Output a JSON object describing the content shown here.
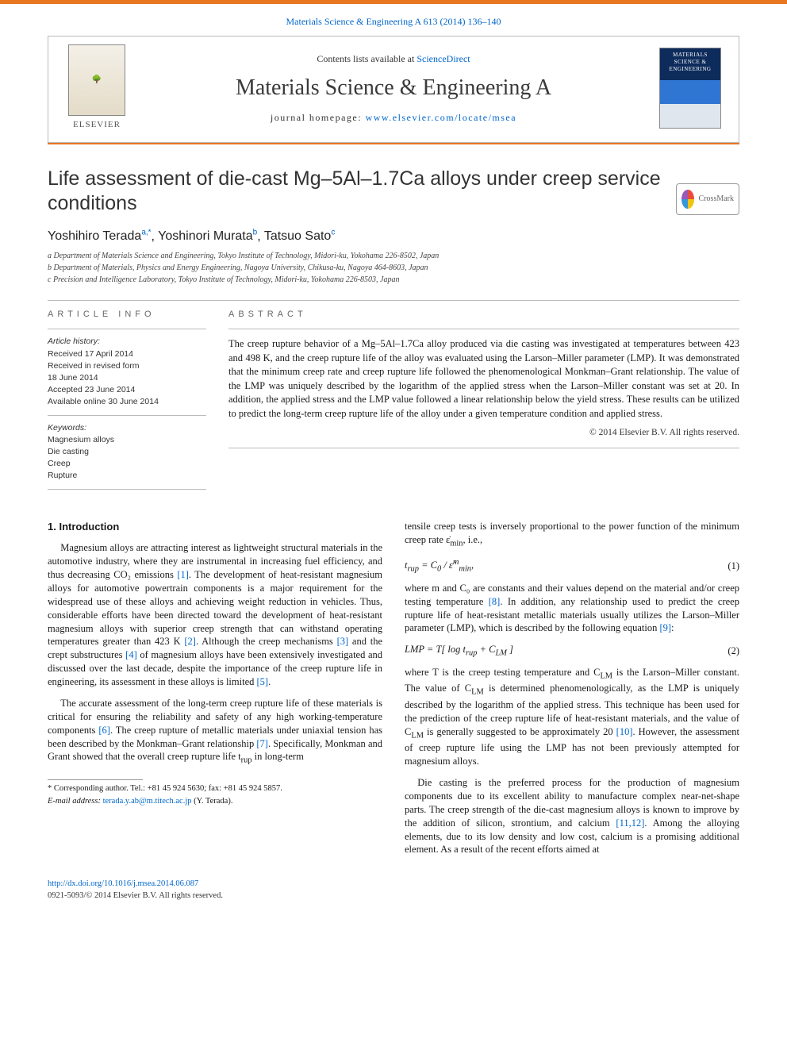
{
  "header": {
    "topLink": "Materials Science & Engineering A 613 (2014) 136–140",
    "contentsLine_pre": "Contents lists available at ",
    "contentsLine_link": "ScienceDirect",
    "journalTitle": "Materials Science & Engineering A",
    "homepage_pre": "journal homepage: ",
    "homepage_link": "www.elsevier.com/locate/msea",
    "publisher": "ELSEVIER",
    "coverLabel": "MATERIALS SCIENCE & ENGINEERING"
  },
  "article": {
    "title": "Life assessment of die-cast Mg–5Al–1.7Ca alloys under creep service conditions",
    "crossmark": "CrossMark",
    "authors_html": "Yoshihiro Terada",
    "authors": [
      {
        "name": "Yoshihiro Terada",
        "sup": "a,*"
      },
      {
        "name": "Yoshinori Murata",
        "sup": "b"
      },
      {
        "name": "Tatsuo Sato",
        "sup": "c"
      }
    ],
    "affiliations": [
      "a Department of Materials Science and Engineering, Tokyo Institute of Technology, Midori-ku, Yokohama 226-8502, Japan",
      "b Department of Materials, Physics and Energy Engineering, Nagoya University, Chikusa-ku, Nagoya 464-8603, Japan",
      "c Precision and Intelligence Laboratory, Tokyo Institute of Technology, Midori-ku, Yokohama 226-8503, Japan"
    ]
  },
  "info": {
    "label": "ARTICLE INFO",
    "historyTitle": "Article history:",
    "history": [
      "Received 17 April 2014",
      "Received in revised form",
      "18 June 2014",
      "Accepted 23 June 2014",
      "Available online 30 June 2014"
    ],
    "keywordsTitle": "Keywords:",
    "keywords": [
      "Magnesium alloys",
      "Die casting",
      "Creep",
      "Rupture"
    ]
  },
  "abstract": {
    "label": "ABSTRACT",
    "text": "The creep rupture behavior of a Mg–5Al–1.7Ca alloy produced via die casting was investigated at temperatures between 423 and 498 K, and the creep rupture life of the alloy was evaluated using the Larson–Miller parameter (LMP). It was demonstrated that the minimum creep rate and creep rupture life followed the phenomenological Monkman–Grant relationship. The value of the LMP was uniquely described by the logarithm of the applied stress when the Larson–Miller constant was set at 20. In addition, the applied stress and the LMP value followed a linear relationship below the yield stress. These results can be utilized to predict the long-term creep rupture life of the alloy under a given temperature condition and applied stress.",
    "copyright": "© 2014 Elsevier B.V. All rights reserved."
  },
  "body": {
    "introTitle": "1.  Introduction",
    "p1_a": "Magnesium alloys are attracting interest as lightweight structural materials in the automotive industry, where they are instrumental in increasing fuel efficiency, and thus decreasing CO₂ emissions ",
    "r1": "[1]",
    "p1_b": ". The development of heat-resistant magnesium alloys for automotive powertrain components is a major requirement for the widespread use of these alloys and achieving weight reduction in vehicles. Thus, considerable efforts have been directed toward the development of heat-resistant magnesium alloys with superior creep strength that can withstand operating temperatures greater than 423 K ",
    "r2": "[2]",
    "p1_c": ". Although the creep mechanisms ",
    "r3": "[3]",
    "p1_d": " and the crept substructures ",
    "r4": "[4]",
    "p1_e": " of magnesium alloys have been extensively investigated and discussed over the last decade, despite the importance of the creep rupture life in engineering, its assessment in these alloys is limited ",
    "r5": "[5]",
    "p1_f": ".",
    "p2_a": "The accurate assessment of the long-term creep rupture life of these materials is critical for ensuring the reliability and safety of any high working-temperature components ",
    "r6": "[6]",
    "p2_b": ". The creep rupture of metallic materials under uniaxial tension has been described by the Monkman–Grant relationship ",
    "r7": "[7]",
    "p2_c": ". Specifically, Monkman and Grant showed that the overall creep rupture life t",
    "p2_c_sub": "rup",
    "p2_d": " in long-term",
    "col2_lead": "tensile creep tests is inversely proportional to the power function of the minimum creep rate ε̇",
    "col2_lead_sub": "min",
    "col2_lead2": ", i.e.,",
    "eq1": "t_rup = C₀ / ε̇ᵐ_min,",
    "eq1num": "(1)",
    "p3_a": "where m and C₀ are constants and their values depend on the material and/or creep testing temperature ",
    "r8": "[8]",
    "p3_b": ". In addition, any relationship used to predict the creep rupture life of heat-resistant metallic materials usually utilizes the Larson–Miller parameter (LMP), which is described by the following equation ",
    "r9": "[9]",
    "p3_c": ":",
    "eq2": "LMP = T[ log  t_rup + C_LM ]",
    "eq2num": "(2)",
    "p4_a": "where T is the creep testing temperature and C",
    "p4_a_sub": "LM",
    "p4_b": " is the Larson–Miller constant. The value of C",
    "p4_b_sub": "LM",
    "p4_c": " is determined phenomenologically, as the LMP is uniquely described by the logarithm of the applied stress. This technique has been used for the prediction of the creep rupture life of heat-resistant materials, and the value of C",
    "p4_c_sub": "LM",
    "p4_d": " is generally suggested to be approximately 20 ",
    "r10": "[10]",
    "p4_e": ". However, the assessment of creep rupture life using the LMP has not been previously attempted for magnesium alloys.",
    "p5_a": "Die casting is the preferred process for the production of magnesium components due to its excellent ability to manufacture complex near-net-shape parts. The creep strength of the die-cast magnesium alloys is known to improve by the addition of silicon, strontium, and calcium ",
    "r1112": "[11,12]",
    "p5_b": ". Among the alloying elements, due to its low density and low cost, calcium is a promising additional element. As a result of the recent efforts aimed at"
  },
  "footnote": {
    "corrLabel": "* Corresponding author. Tel.: ",
    "tel": "+81 45 924 5630",
    "faxLabel": "; fax: ",
    "fax": "+81 45 924 5857.",
    "emailLabel": "E-mail address: ",
    "email": "terada.y.ab@m.titech.ac.jp",
    "emailTrail": " (Y. Terada)."
  },
  "bottom": {
    "doi": "http://dx.doi.org/10.1016/j.msea.2014.06.087",
    "issn": "0921-5093/© 2014 Elsevier B.V. All rights reserved."
  },
  "colors": {
    "orange": "#e87722",
    "link": "#0066cc"
  }
}
